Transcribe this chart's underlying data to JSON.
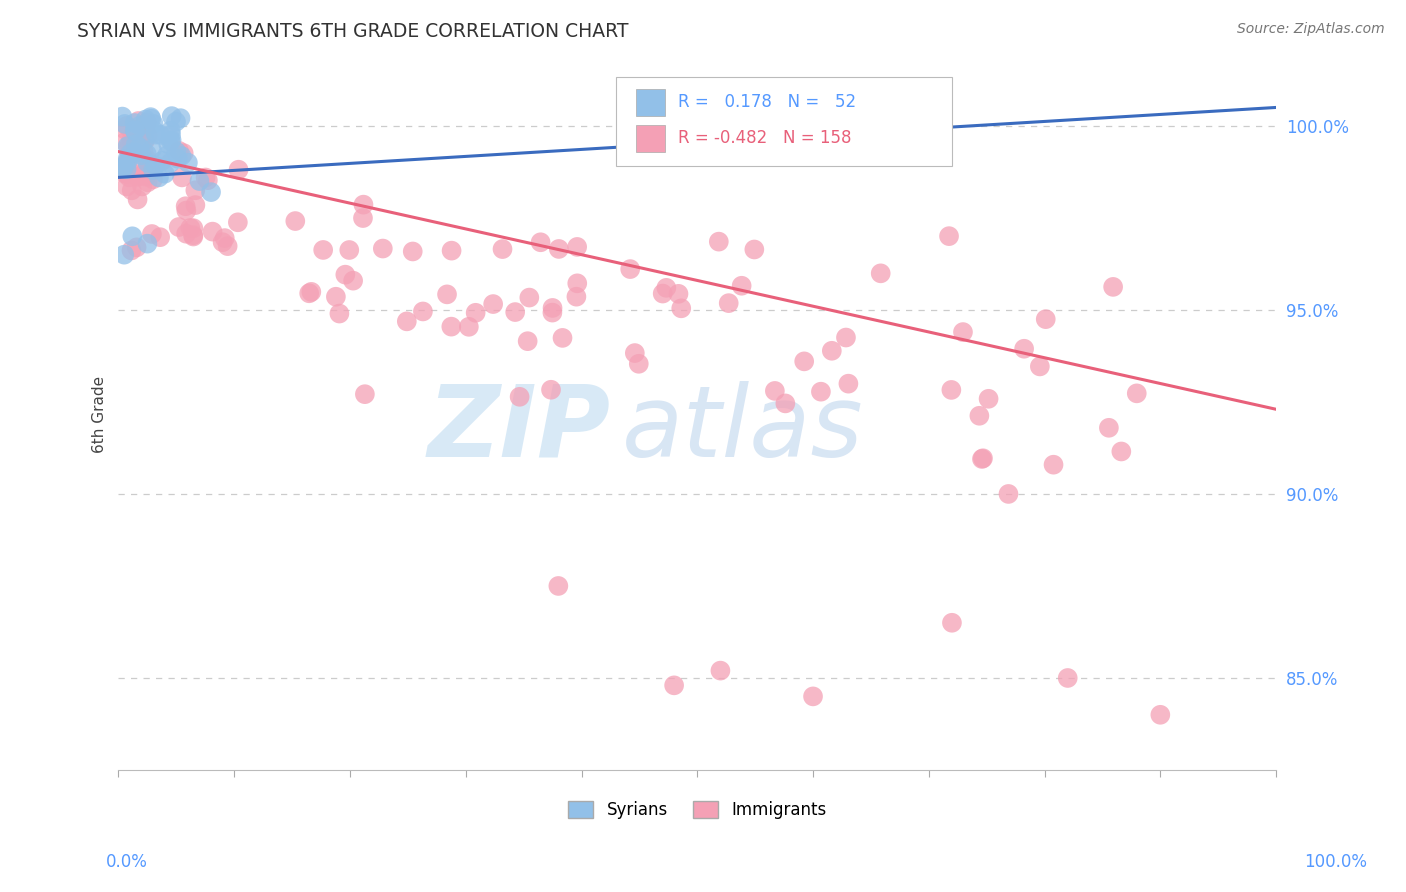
{
  "title": "SYRIAN VS IMMIGRANTS 6TH GRADE CORRELATION CHART",
  "source": "Source: ZipAtlas.com",
  "ylabel": "6th Grade",
  "legend_R_blue": "0.178",
  "legend_N_blue": "52",
  "legend_R_pink": "-0.482",
  "legend_N_pink": "158",
  "legend_label_blue": "Syrians",
  "legend_label_pink": "Immigrants",
  "watermark_zip": "ZIP",
  "watermark_atlas": "atlas",
  "blue_color": "#92c0e8",
  "pink_color": "#f4a0b5",
  "blue_line_color": "#3a6bbf",
  "pink_line_color": "#e8607a",
  "background_color": "#ffffff",
  "grid_color": "#cccccc",
  "title_color": "#333333",
  "axis_label_color": "#5599ff",
  "xmin": 0.0,
  "xmax": 100.0,
  "ymin": 82.5,
  "ymax": 101.8,
  "yticks": [
    85.0,
    90.0,
    95.0,
    100.0
  ],
  "blue_trend_x0": 0.0,
  "blue_trend_y0": 98.6,
  "blue_trend_x1": 100.0,
  "blue_trend_y1": 100.5,
  "pink_trend_x0": 0.0,
  "pink_trend_y0": 99.3,
  "pink_trend_x1": 100.0,
  "pink_trend_y1": 92.3
}
